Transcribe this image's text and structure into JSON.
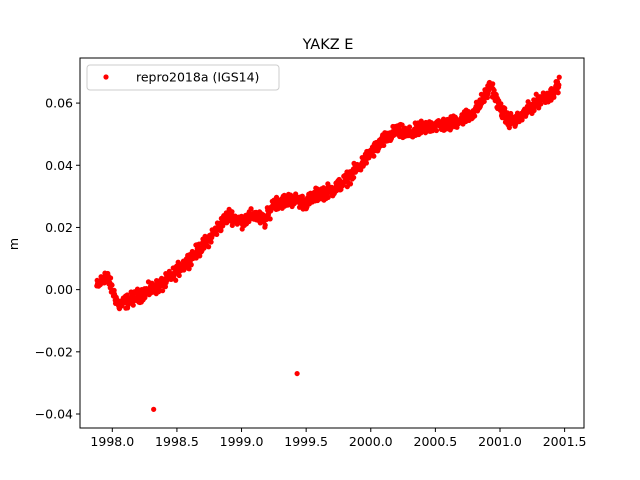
{
  "chart_data": {
    "type": "scatter",
    "title": "YAKZ E",
    "xlabel": "",
    "ylabel": "m",
    "xlim": [
      1997.75,
      2001.65
    ],
    "ylim": [
      -0.0445,
      0.0745
    ],
    "x_ticks": [
      1998.0,
      1998.5,
      1999.0,
      1999.5,
      2000.0,
      2000.5,
      2001.0,
      2001.5
    ],
    "x_tick_labels": [
      "1998.0",
      "1998.5",
      "1999.0",
      "1999.5",
      "2000.0",
      "2000.5",
      "2001.0",
      "2001.5"
    ],
    "y_ticks": [
      -0.04,
      -0.02,
      0.0,
      0.02,
      0.04,
      0.06
    ],
    "y_tick_labels": [
      "−0.04",
      "−0.02",
      "0.00",
      "0.02",
      "0.04",
      "0.06"
    ],
    "grid": false,
    "legend_position": "upper-left",
    "marker_color": "#ff0000",
    "series": [
      {
        "name": "repro2018a (IGS14)",
        "trend": [
          [
            1997.88,
            0.001
          ],
          [
            1997.92,
            0.003
          ],
          [
            1997.95,
            0.005
          ],
          [
            1998.0,
            0.0
          ],
          [
            1998.05,
            -0.005
          ],
          [
            1998.1,
            -0.004
          ],
          [
            1998.2,
            -0.002
          ],
          [
            1998.3,
            0.0
          ],
          [
            1998.4,
            0.002
          ],
          [
            1998.5,
            0.006
          ],
          [
            1998.6,
            0.01
          ],
          [
            1998.7,
            0.014
          ],
          [
            1998.8,
            0.019
          ],
          [
            1998.9,
            0.024
          ],
          [
            1999.0,
            0.022
          ],
          [
            1999.1,
            0.024
          ],
          [
            1999.18,
            0.022
          ],
          [
            1999.25,
            0.028
          ],
          [
            1999.4,
            0.029
          ],
          [
            1999.5,
            0.028
          ],
          [
            1999.6,
            0.031
          ],
          [
            1999.7,
            0.032
          ],
          [
            1999.8,
            0.035
          ],
          [
            1999.9,
            0.039
          ],
          [
            2000.0,
            0.044
          ],
          [
            2000.1,
            0.048
          ],
          [
            2000.2,
            0.051
          ],
          [
            2000.3,
            0.05
          ],
          [
            2000.4,
            0.052
          ],
          [
            2000.5,
            0.053
          ],
          [
            2000.6,
            0.053
          ],
          [
            2000.7,
            0.055
          ],
          [
            2000.8,
            0.057
          ],
          [
            2000.88,
            0.062
          ],
          [
            2000.93,
            0.066
          ],
          [
            2000.98,
            0.06
          ],
          [
            2001.05,
            0.055
          ],
          [
            2001.12,
            0.054
          ],
          [
            2001.2,
            0.057
          ],
          [
            2001.3,
            0.061
          ],
          [
            2001.4,
            0.063
          ],
          [
            2001.46,
            0.066
          ]
        ],
        "spread": 0.0018,
        "sampling": "daily",
        "outliers": [
          [
            1998.32,
            -0.0385
          ],
          [
            1999.43,
            -0.027
          ]
        ]
      }
    ]
  }
}
